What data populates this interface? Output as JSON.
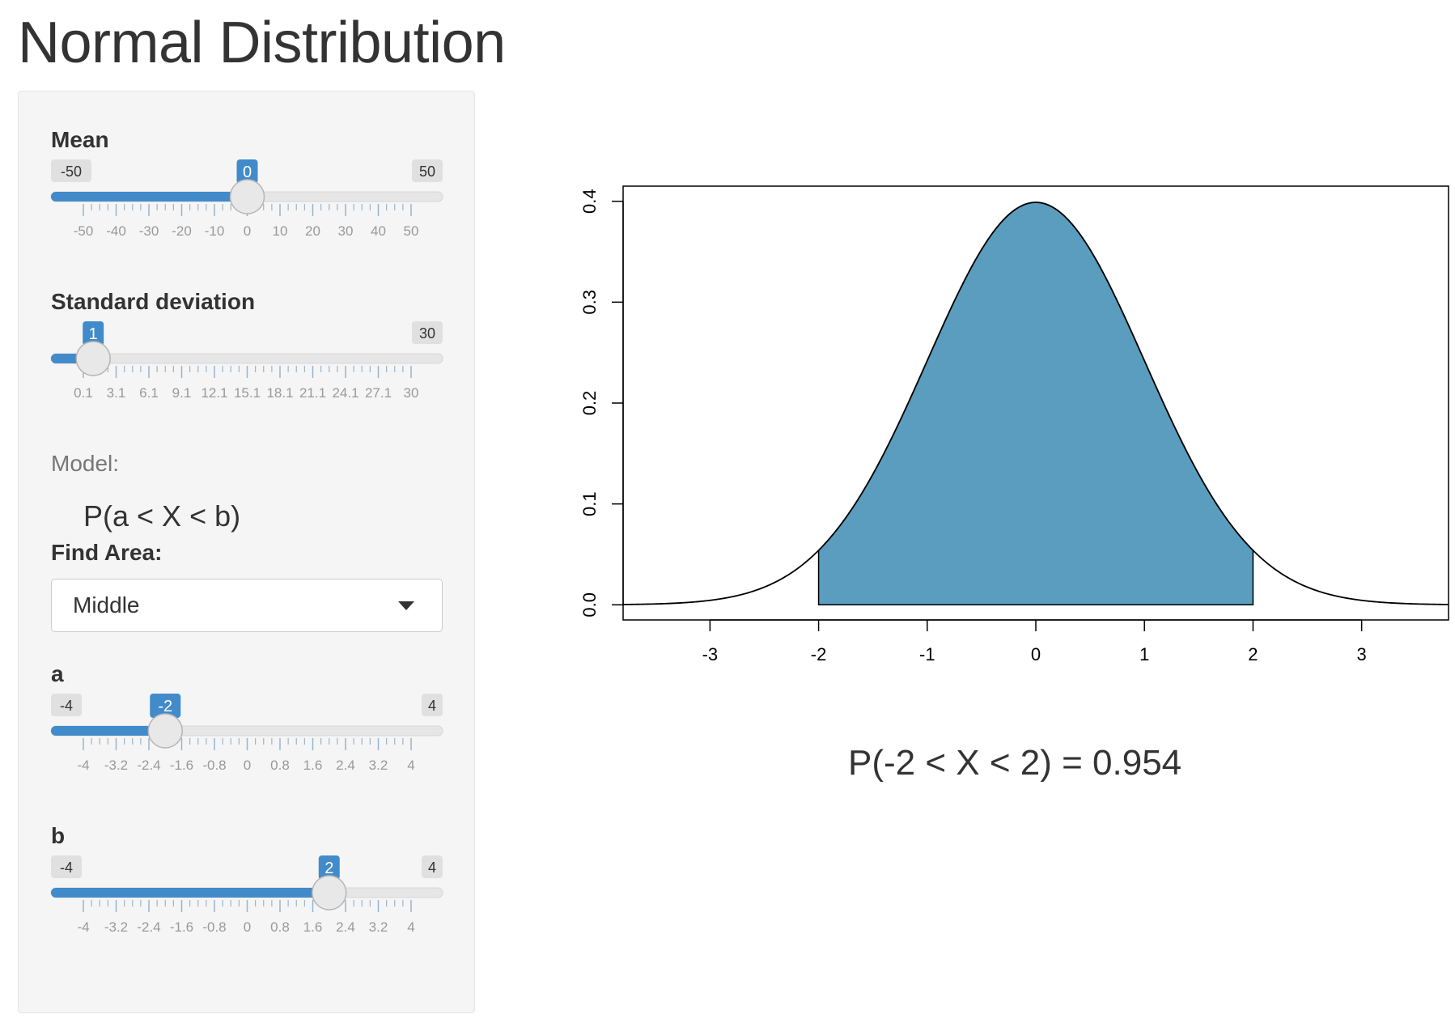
{
  "header": {
    "title": "Normal Distribution"
  },
  "colors": {
    "accent": "#428bca",
    "fill": "#5a9dbe",
    "tick": "#99b4cc",
    "badge": "#e0e0e0"
  },
  "mean": {
    "label": "Mean",
    "min_label": "-50",
    "max_label": "50",
    "value_label": "0",
    "min": -50,
    "max": 50,
    "value": 0,
    "ticks": [
      "-50",
      "-40",
      "-30",
      "-20",
      "-10",
      "0",
      "10",
      "20",
      "30",
      "40",
      "50"
    ]
  },
  "sd": {
    "label": "Standard deviation",
    "min_label": "",
    "max_label": "30",
    "value_label": "1",
    "min": 0.1,
    "max": 30,
    "value": 1,
    "ticks": [
      "0.1",
      "3.1",
      "6.1",
      "9.1",
      "12.1",
      "15.1",
      "18.1",
      "21.1",
      "24.1",
      "27.1",
      "30"
    ]
  },
  "model": {
    "label": "Model:",
    "formula": "P(a < X < b)"
  },
  "find_area": {
    "label": "Find Area:",
    "selected": "Middle"
  },
  "a": {
    "label": "a",
    "min_label": "-4",
    "max_label": "4",
    "value_label": "-2",
    "min": -4,
    "max": 4,
    "value": -2,
    "ticks": [
      "-4",
      "-3.2",
      "-2.4",
      "-1.6",
      "-0.8",
      "0",
      "0.8",
      "1.6",
      "2.4",
      "3.2",
      "4"
    ]
  },
  "b": {
    "label": "b",
    "min_label": "-4",
    "max_label": "4",
    "value_label": "2",
    "min": -4,
    "max": 4,
    "value": 2,
    "ticks": [
      "-4",
      "-3.2",
      "-2.4",
      "-1.6",
      "-0.8",
      "0",
      "0.8",
      "1.6",
      "2.4",
      "3.2",
      "4"
    ]
  },
  "result": {
    "text": "P(-2 < X < 2) = 0.954"
  },
  "chart_data": {
    "type": "area",
    "title": "",
    "xlabel": "",
    "ylabel": "",
    "mean": 0,
    "sd": 1,
    "shade_from": -2,
    "shade_to": 2,
    "xlim": [
      -3.8,
      3.8
    ],
    "ylim": [
      -0.015,
      0.415
    ],
    "xticks": [
      -3,
      -2,
      -1,
      0,
      1,
      2,
      3
    ],
    "xtick_labels": [
      "-3",
      "-2",
      "-1",
      "0",
      "1",
      "2",
      "3"
    ],
    "yticks": [
      0.0,
      0.1,
      0.2,
      0.3,
      0.4
    ],
    "ytick_labels": [
      "0.0",
      "0.1",
      "0.2",
      "0.3",
      "0.4"
    ],
    "grid": false
  }
}
